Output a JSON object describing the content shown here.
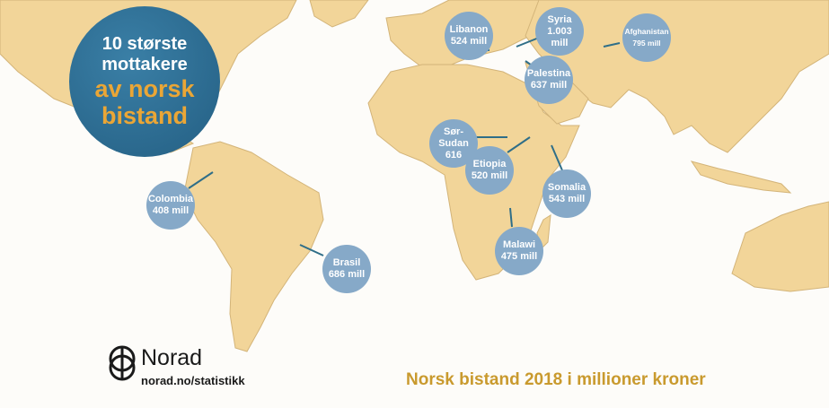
{
  "title": {
    "lines": [
      "10 største",
      "mottakere",
      "av norsk",
      "bistand"
    ]
  },
  "recipients": [
    {
      "name": "Libanon",
      "amount": "524 mill"
    },
    {
      "name": "Syria",
      "amount": "1.003 mill"
    },
    {
      "name": "Afghanistan",
      "amount": "795 mill"
    },
    {
      "name": "Palestina",
      "amount": "637 mill"
    },
    {
      "name": "Sør-Sudan",
      "amount": "616"
    },
    {
      "name": "Etiopia",
      "amount": "520 mill"
    },
    {
      "name": "Somalia",
      "amount": "543 mill"
    },
    {
      "name": "Malawi",
      "amount": "475 mill"
    },
    {
      "name": "Colombia",
      "amount": "408 mill"
    },
    {
      "name": "Brasil",
      "amount": "686 mill"
    }
  ],
  "logo": {
    "name": "Norad",
    "url": "norad.no/statistikk"
  },
  "caption": "Norsk bistand 2018 i millioner kroner"
}
